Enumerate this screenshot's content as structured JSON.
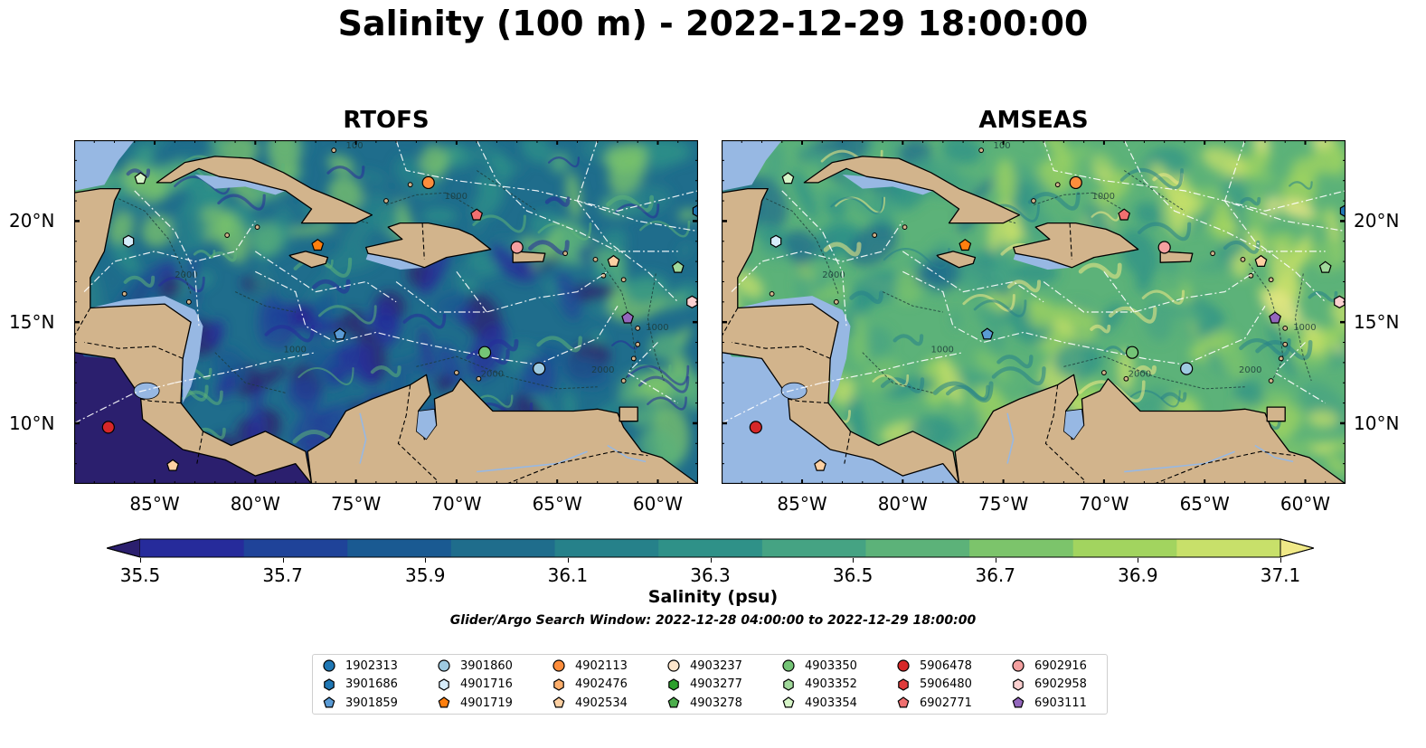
{
  "title": "Salinity (100 m) - 2022-12-29 18:00:00",
  "panels": [
    {
      "title": "RTOFS",
      "tone": "low"
    },
    {
      "title": "AMSEAS",
      "tone": "high"
    }
  ],
  "x_ticks": [
    "85°W",
    "80°W",
    "75°W",
    "70°W",
    "65°W",
    "60°W"
  ],
  "x_tick_lon": [
    -85,
    -80,
    -75,
    -70,
    -65,
    -60
  ],
  "y_ticks": [
    "20°N",
    "15°N",
    "10°N"
  ],
  "y_tick_lat": [
    20,
    15,
    10
  ],
  "extent": {
    "lon": [
      -89,
      -58
    ],
    "lat": [
      7,
      24
    ]
  },
  "colorbar": {
    "ticks": [
      "35.5",
      "35.7",
      "35.9",
      "36.1",
      "36.3",
      "36.5",
      "36.7",
      "36.9",
      "37.1"
    ],
    "label": "Salinity (psu)",
    "range": [
      35.5,
      37.1
    ],
    "colors": [
      "#2b1f6e",
      "#262b9b",
      "#1f4399",
      "#1a5a92",
      "#1f6d8c",
      "#26818a",
      "#2f9188",
      "#45a383",
      "#5cb279",
      "#7cc46b",
      "#a2d45f",
      "#c8e06a",
      "#f0e987"
    ]
  },
  "search_window": "Glider/Argo Search Window: 2022-12-28 04:00:00 to 2022-12-29 18:00:00",
  "land_color": "#d2b48c",
  "shallow_color": "#97b8e3",
  "legend": [
    {
      "id": "1902313",
      "marker": "circle",
      "color": "#1f77b4"
    },
    {
      "id": "3901686",
      "marker": "hexagon",
      "color": "#1f77b4"
    },
    {
      "id": "3901859",
      "marker": "pentagon",
      "color": "#5a9bd5"
    },
    {
      "id": "3901860",
      "marker": "circle",
      "color": "#9ecae1"
    },
    {
      "id": "4901716",
      "marker": "hexagon",
      "color": "#d6ecfa"
    },
    {
      "id": "4901719",
      "marker": "pentagon",
      "color": "#ff7f0e"
    },
    {
      "id": "4902113",
      "marker": "circle",
      "color": "#fd8d3c"
    },
    {
      "id": "4902476",
      "marker": "hexagon",
      "color": "#fdae6b"
    },
    {
      "id": "4902534",
      "marker": "pentagon",
      "color": "#fdd0a2"
    },
    {
      "id": "4903237",
      "marker": "circle",
      "color": "#fde5cc"
    },
    {
      "id": "4903277",
      "marker": "hexagon",
      "color": "#2ca02c"
    },
    {
      "id": "4903278",
      "marker": "pentagon",
      "color": "#4cae4c"
    },
    {
      "id": "4903350",
      "marker": "circle",
      "color": "#74c476"
    },
    {
      "id": "4903352",
      "marker": "hexagon",
      "color": "#a1d99b"
    },
    {
      "id": "4903354",
      "marker": "pentagon",
      "color": "#d6f5c7"
    },
    {
      "id": "5906478",
      "marker": "circle",
      "color": "#d62728"
    },
    {
      "id": "5906480",
      "marker": "hexagon",
      "color": "#e03b3b"
    },
    {
      "id": "6902771",
      "marker": "pentagon",
      "color": "#f07070"
    },
    {
      "id": "6902916",
      "marker": "circle",
      "color": "#f4a0a0"
    },
    {
      "id": "6902958",
      "marker": "hexagon",
      "color": "#fbd0d0"
    },
    {
      "id": "6903111",
      "marker": "pentagon",
      "color": "#9467bd"
    }
  ],
  "floats": [
    {
      "marker": "circle",
      "color": "#d62728",
      "lon": -87.3,
      "lat": 9.8
    },
    {
      "marker": "pentagon",
      "color": "#fdd0a2",
      "lon": -84.1,
      "lat": 7.9
    },
    {
      "marker": "pentagon",
      "color": "#d6f5c7",
      "lon": -85.7,
      "lat": 22.1
    },
    {
      "marker": "hexagon",
      "color": "#d6ecfa",
      "lon": -86.3,
      "lat": 19.0
    },
    {
      "marker": "circle",
      "color": "#fd8d3c",
      "lon": -71.4,
      "lat": 21.9
    },
    {
      "marker": "pentagon",
      "color": "#ff7f0e",
      "lon": -76.9,
      "lat": 18.8
    },
    {
      "marker": "pentagon",
      "color": "#f07070",
      "lon": -69.0,
      "lat": 20.3
    },
    {
      "marker": "circle",
      "color": "#f4a0a0",
      "lon": -67.0,
      "lat": 18.7
    },
    {
      "marker": "pentagon",
      "color": "#fdd0a2",
      "lon": -62.2,
      "lat": 18.0
    },
    {
      "marker": "pentagon",
      "color": "#a1d99b",
      "lon": -59.0,
      "lat": 17.7
    },
    {
      "marker": "hexagon",
      "color": "#fbd0d0",
      "lon": -58.3,
      "lat": 16.0
    },
    {
      "marker": "pentagon",
      "color": "#9467bd",
      "lon": -61.5,
      "lat": 15.2
    },
    {
      "marker": "hexagon",
      "color": "#1f77b4",
      "lon": -58.0,
      "lat": 20.5
    },
    {
      "marker": "circle",
      "color": "#74c476",
      "lon": -68.6,
      "lat": 13.5
    },
    {
      "marker": "circle",
      "color": "#9ecae1",
      "lon": -65.9,
      "lat": 12.7
    },
    {
      "marker": "pentagon",
      "color": "#5a9bd5",
      "lon": -75.8,
      "lat": 14.4
    }
  ]
}
